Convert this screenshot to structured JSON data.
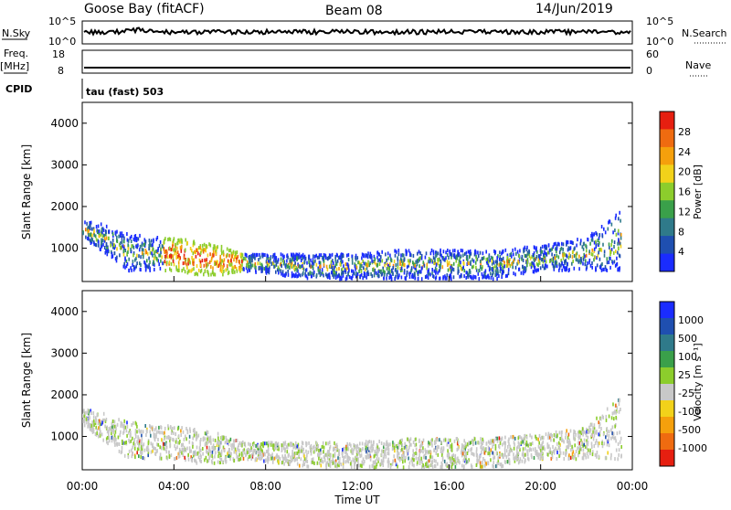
{
  "header": {
    "station": "Goose Bay (fitACF)",
    "beam": "Beam 08",
    "date": "14/Jun/2019"
  },
  "aux_panels": {
    "nsky": {
      "label": "N.Sky",
      "ticks": [
        "10^5",
        "10^0"
      ]
    },
    "nsearch": {
      "label": "N.Search",
      "ticks": [
        "10^5",
        "10^0"
      ]
    },
    "freq": {
      "label_top": "Freq.",
      "label_units": "[MHz]",
      "ticks": [
        "18",
        "8"
      ]
    },
    "nave": {
      "label": "Nave",
      "ticks": [
        "60",
        "0"
      ]
    },
    "cpid": {
      "label": "CPID",
      "value": "tau (fast) 503"
    }
  },
  "chart_data": [
    {
      "type": "heatmap",
      "title": "",
      "ylabel": "Slant Range [km]",
      "yticks": [
        "1000",
        "2000",
        "3000",
        "4000"
      ],
      "ylim": [
        200,
        4500
      ],
      "xlim": [
        0,
        24
      ],
      "colorbar": {
        "label": "Power [dB]",
        "ticks": [
          "4",
          "8",
          "12",
          "16",
          "20",
          "24",
          "28"
        ],
        "colors": [
          "#1a2cff",
          "#1f4fb0",
          "#2f7a8a",
          "#3aa04a",
          "#8ccd2c",
          "#f2d21a",
          "#f5a00c",
          "#ef6b10",
          "#e61f10"
        ]
      },
      "series": [
        {
          "name": "",
          "x": [
            0.0,
            1.0,
            2.0,
            3.0,
            4.0,
            5.0,
            6.0,
            7.0,
            10.0,
            12.0,
            14.0,
            16.0,
            18.0,
            20.0,
            22.0,
            23.5
          ],
          "y_low": [
            1300,
            900,
            500,
            500,
            500,
            400,
            400,
            500,
            300,
            300,
            300,
            300,
            300,
            500,
            500,
            500
          ],
          "y_high": [
            1700,
            1600,
            1400,
            1300,
            1300,
            1200,
            1100,
            900,
            900,
            900,
            1000,
            1000,
            1000,
            1100,
            1300,
            2000
          ]
        }
      ]
    },
    {
      "type": "heatmap",
      "title": "",
      "ylabel": "Slant Range [km]",
      "yticks": [
        "1000",
        "2000",
        "3000",
        "4000"
      ],
      "ylim": [
        200,
        4500
      ],
      "xlim": [
        0,
        24
      ],
      "xticks": [
        "00:00",
        "04:00",
        "08:00",
        "12:00",
        "16:00",
        "20:00",
        "00:00"
      ],
      "xlabel": "Time UT",
      "colorbar": {
        "label": "Velocity [m s⁻¹]",
        "ticks": [
          "1000",
          "500",
          "100",
          "25",
          "-25",
          "-100",
          "-500",
          "-1000"
        ],
        "colors": [
          "#1a2cff",
          "#1f4fb0",
          "#2f7a8a",
          "#3aa04a",
          "#8ccd2c",
          "#c8c8c8",
          "#f2d21a",
          "#f5a00c",
          "#ef6b10",
          "#e61f10"
        ]
      },
      "series": [
        {
          "name": "",
          "x": [
            0.0,
            1.0,
            2.0,
            3.0,
            4.0,
            5.0,
            6.0,
            7.0,
            10.0,
            12.0,
            14.0,
            16.0,
            18.0,
            20.0,
            22.0,
            23.5
          ],
          "y_low": [
            1300,
            900,
            500,
            500,
            500,
            400,
            400,
            500,
            300,
            300,
            300,
            300,
            300,
            500,
            500,
            500
          ],
          "y_high": [
            1700,
            1600,
            1400,
            1300,
            1300,
            1200,
            1100,
            900,
            900,
            900,
            1000,
            1000,
            1000,
            1100,
            1300,
            2000
          ]
        }
      ]
    }
  ]
}
